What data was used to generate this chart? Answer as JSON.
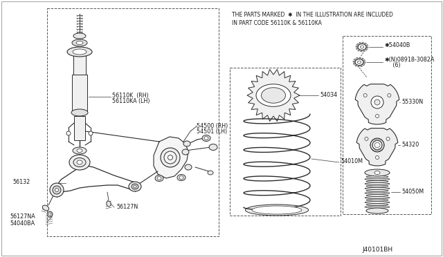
{
  "bg_color": "#ffffff",
  "line_color": "#2a2a2a",
  "text_color": "#1a1a1a",
  "note_line1": "THE PARTS MARKED  ✱  IN THE ILLUSTRATION ARE INCLUDED",
  "note_line2": "IN PART CODE 56110K & 56110KA",
  "font_size": 5.8,
  "diagram_num": "J40101BH",
  "labels": {
    "56110K": "56110K  (RH)",
    "56110KA": "56110KA (LH)",
    "54500": "54500 (RH)",
    "54501": "54501 (LH)",
    "56132": "56132",
    "56127N": "56127N",
    "56127NA": "56127NA",
    "54040BA": "54040BA",
    "54034": "54034",
    "54010M": "54010M",
    "54040B": "✱54040B",
    "08918": "✱(N)08918-3082A",
    "08918b": "     (6)",
    "55330N": "55330N",
    "54320": "54320",
    "54050M": "54050M"
  }
}
